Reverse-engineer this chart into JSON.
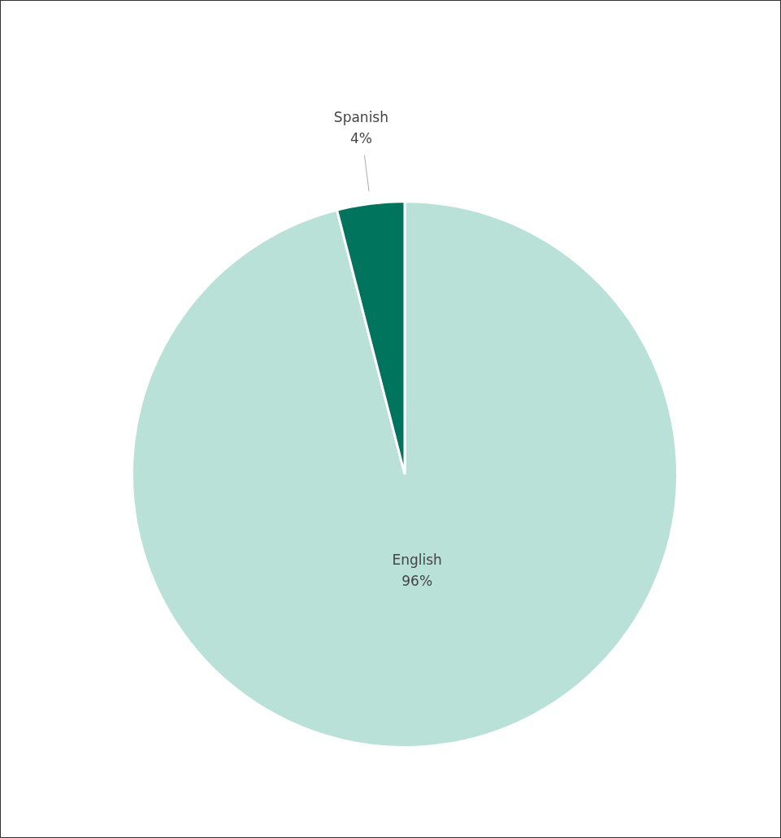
{
  "chart_data": {
    "type": "pie",
    "categories": [
      "English",
      "Spanish"
    ],
    "values": [
      96,
      4
    ],
    "colors": [
      "#b9e1d8",
      "#00745d"
    ],
    "value_labels": [
      "96%",
      "4%"
    ],
    "legend": false
  }
}
